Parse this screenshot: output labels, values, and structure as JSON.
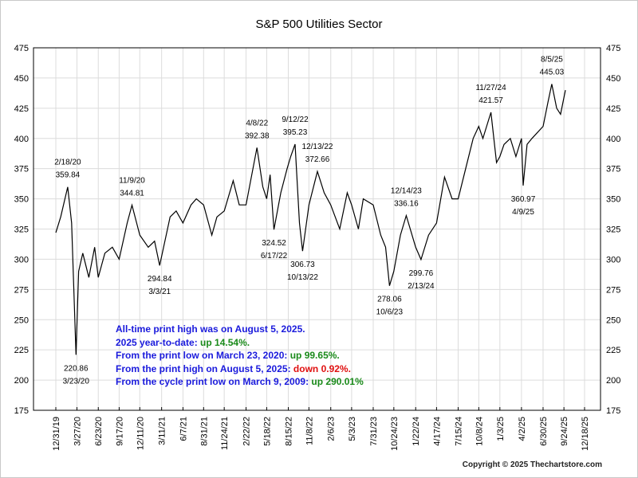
{
  "chart_data": {
    "type": "line",
    "title": "S&P 500 Utilities Sector",
    "xlabel": "",
    "ylabel": "",
    "ylim": [
      175,
      475
    ],
    "yticks": [
      175,
      200,
      225,
      250,
      275,
      300,
      325,
      350,
      375,
      400,
      425,
      450,
      475
    ],
    "xticks": [
      "12/31/19",
      "3/27/20",
      "6/23/20",
      "9/17/20",
      "12/11/20",
      "3/11/21",
      "6/7/21",
      "8/31/21",
      "11/24/21",
      "2/22/22",
      "5/18/22",
      "8/15/22",
      "11/8/22",
      "2/6/23",
      "5/3/23",
      "7/31/23",
      "10/24/23",
      "1/22/24",
      "4/17/24",
      "7/15/24",
      "10/8/24",
      "1/3/25",
      "4/2/25",
      "6/30/25",
      "9/24/25",
      "12/18/25"
    ],
    "grid": true,
    "line_color": "#000000",
    "series": [
      {
        "points": [
          [
            "12/31/19",
            322
          ],
          [
            "1/20/20",
            335
          ],
          [
            "2/18/20",
            359.84
          ],
          [
            "3/5/20",
            330
          ],
          [
            "3/23/20",
            220.86
          ],
          [
            "4/3/20",
            290
          ],
          [
            "4/20/20",
            305
          ],
          [
            "5/15/20",
            285
          ],
          [
            "6/8/20",
            310
          ],
          [
            "6/23/20",
            285
          ],
          [
            "7/20/20",
            305
          ],
          [
            "8/20/20",
            310
          ],
          [
            "9/17/20",
            300
          ],
          [
            "10/20/20",
            330
          ],
          [
            "11/9/20",
            344.81
          ],
          [
            "12/11/20",
            320
          ],
          [
            "1/15/21",
            310
          ],
          [
            "2/10/21",
            315
          ],
          [
            "3/3/21",
            294.84
          ],
          [
            "4/15/21",
            335
          ],
          [
            "5/10/21",
            340
          ],
          [
            "6/7/21",
            330
          ],
          [
            "7/10/21",
            345
          ],
          [
            "8/1/21",
            350
          ],
          [
            "8/31/21",
            345
          ],
          [
            "10/4/21",
            320
          ],
          [
            "10/25/21",
            335
          ],
          [
            "11/24/21",
            340
          ],
          [
            "12/31/21",
            365
          ],
          [
            "1/25/22",
            345
          ],
          [
            "2/22/22",
            345
          ],
          [
            "4/8/22",
            392.38
          ],
          [
            "5/2/22",
            360
          ],
          [
            "5/18/22",
            350
          ],
          [
            "6/1/22",
            370
          ],
          [
            "6/17/22",
            324.52
          ],
          [
            "7/15/22",
            355
          ],
          [
            "8/10/22",
            375
          ],
          [
            "8/25/22",
            385
          ],
          [
            "9/12/22",
            395.23
          ],
          [
            "9/30/22",
            330
          ],
          [
            "10/13/22",
            306.73
          ],
          [
            "11/8/22",
            345
          ],
          [
            "12/13/22",
            372.66
          ],
          [
            "1/10/23",
            355
          ],
          [
            "2/6/23",
            345
          ],
          [
            "3/15/23",
            325
          ],
          [
            "4/15/23",
            355
          ],
          [
            "5/3/23",
            345
          ],
          [
            "5/31/23",
            325
          ],
          [
            "6/20/23",
            350
          ],
          [
            "7/31/23",
            345
          ],
          [
            "8/31/23",
            320
          ],
          [
            "9/20/23",
            310
          ],
          [
            "10/6/23",
            278.06
          ],
          [
            "10/24/23",
            290
          ],
          [
            "11/20/23",
            320
          ],
          [
            "12/14/23",
            336.16
          ],
          [
            "1/22/24",
            310
          ],
          [
            "2/13/24",
            299.76
          ],
          [
            "3/15/24",
            320
          ],
          [
            "4/17/24",
            330
          ],
          [
            "5/20/24",
            368
          ],
          [
            "6/20/24",
            350
          ],
          [
            "7/15/24",
            350
          ],
          [
            "8/15/24",
            375
          ],
          [
            "9/15/24",
            400
          ],
          [
            "10/8/24",
            410
          ],
          [
            "10/25/24",
            400
          ],
          [
            "11/27/24",
            421.57
          ],
          [
            "12/20/24",
            380
          ],
          [
            "1/3/25",
            385
          ],
          [
            "1/20/25",
            395
          ],
          [
            "2/15/25",
            400
          ],
          [
            "3/10/25",
            385
          ],
          [
            "4/2/25",
            400
          ],
          [
            "4/9/25",
            360.97
          ],
          [
            "4/25/25",
            395
          ],
          [
            "5/15/25",
            400
          ],
          [
            "6/30/25",
            410
          ],
          [
            "7/20/25",
            430
          ],
          [
            "8/5/25",
            445.03
          ],
          [
            "8/25/25",
            425
          ],
          [
            "9/10/25",
            420
          ],
          [
            "9/30/25",
            440
          ]
        ]
      }
    ],
    "annotations": [
      {
        "date": "2/18/20",
        "value": 359.84,
        "date_label": "2/18/20",
        "value_label": "359.84",
        "pos": "above"
      },
      {
        "date": "3/23/20",
        "value": 220.86,
        "date_label": "3/23/20",
        "value_label": "220.86",
        "pos": "below"
      },
      {
        "date": "11/9/20",
        "value": 344.81,
        "date_label": "11/9/20",
        "value_label": "344.81",
        "pos": "above"
      },
      {
        "date": "3/3/21",
        "value": 294.84,
        "date_label": "3/3/21",
        "value_label": "294.84",
        "pos": "below"
      },
      {
        "date": "4/8/22",
        "value": 392.38,
        "date_label": "4/8/22",
        "value_label": "392.38",
        "pos": "above"
      },
      {
        "date": "6/17/22",
        "value": 324.52,
        "date_label": "6/17/22",
        "value_label": "324.52",
        "pos": "below"
      },
      {
        "date": "9/12/22",
        "value": 395.23,
        "date_label": "9/12/22",
        "value_label": "395.23",
        "pos": "above"
      },
      {
        "date": "10/13/22",
        "value": 306.73,
        "date_label": "10/13/22",
        "value_label": "306.73",
        "pos": "below"
      },
      {
        "date": "12/13/22",
        "value": 372.66,
        "date_label": "12/13/22",
        "value_label": "372.66",
        "pos": "above"
      },
      {
        "date": "10/6/23",
        "value": 278.06,
        "date_label": "10/6/23",
        "value_label": "278.06",
        "pos": "below"
      },
      {
        "date": "12/14/23",
        "value": 336.16,
        "date_label": "12/14/23",
        "value_label": "336.16",
        "pos": "above"
      },
      {
        "date": "2/13/24",
        "value": 299.76,
        "date_label": "2/13/24",
        "value_label": "299.76",
        "pos": "below"
      },
      {
        "date": "11/27/24",
        "value": 421.57,
        "date_label": "11/27/24",
        "value_label": "421.57",
        "pos": "above"
      },
      {
        "date": "4/9/25",
        "value": 360.97,
        "date_label": "4/9/25",
        "value_label": "360.97",
        "pos": "below"
      },
      {
        "date": "8/5/25",
        "value": 445.03,
        "date_label": "8/5/25",
        "value_label": "445.03",
        "pos": "above"
      }
    ]
  },
  "info": {
    "line1": "All-time print high was on August 5, 2025.",
    "line2_prefix": "2025 year-to-date:  ",
    "line2_value": "up 14.54%.",
    "line3_prefix": "From the print low on March 23, 2020:  ",
    "line3_value": "up 99.65%.",
    "line4_prefix": "From the print high on August 5, 2025:  ",
    "line4_value": "down 0.92%.",
    "line5_prefix": "From the cycle print low on March 9, 2009:  ",
    "line5_value": "up 290.01%",
    "colors": {
      "text": "#1a1adc",
      "up": "#1a8a1a",
      "down": "#e01010"
    }
  },
  "copyright": "Copyright © 2025 Thechartstore.com"
}
